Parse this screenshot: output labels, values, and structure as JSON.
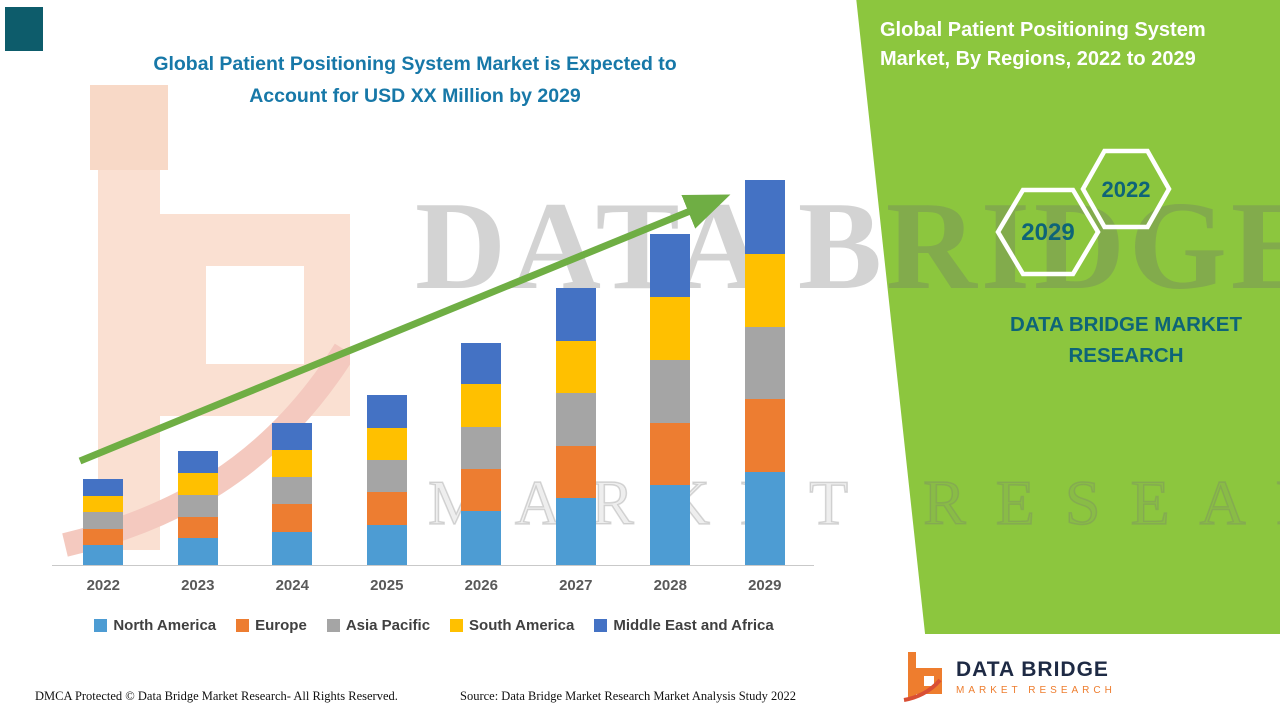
{
  "header": {
    "title_line1": "Global Patient Positioning System Market is Expected to",
    "title_line2": "Account for USD XX Million by 2029"
  },
  "side_panel": {
    "title": "Global Patient Positioning System Market, By Regions, 2022 to 2029",
    "hexagon_labels": [
      "2029",
      "2022"
    ],
    "brand_text": "DATA BRIDGE MARKET RESEARCH",
    "logo_title": "DATA BRIDGE",
    "logo_subtitle": "MARKET RESEARCH"
  },
  "watermark": {
    "line1": "DATA BRIDGE",
    "line2": "MARKET RESEARCH"
  },
  "footer": {
    "dmca": "DMCA Protected © Data Bridge Market Research- All Rights Reserved.",
    "source": "Source: Data Bridge Market Research Market Analysis Study 2022"
  },
  "colors": {
    "panel_green": "#8CC63E",
    "heading_teal": "#1778A8",
    "brand_teal": "#0E6478",
    "arrow_green": "#6FAE44",
    "logo_orange": "#EE7D2E",
    "logo_navy": "#1E2A44"
  },
  "chart_data": {
    "type": "bar",
    "stacked": true,
    "title": "Global Patient Positioning System Market is Expected to Account for USD XX Million by 2029",
    "categories": [
      "2022",
      "2023",
      "2024",
      "2025",
      "2026",
      "2027",
      "2028",
      "2029"
    ],
    "unit": "relative index (actual values masked as USD XX Million)",
    "series": [
      {
        "name": "North America",
        "color": "#4D9CD3",
        "values": [
          20,
          27,
          33,
          40,
          53,
          66,
          79,
          92
        ]
      },
      {
        "name": "Europe",
        "color": "#ED7D31",
        "values": [
          16,
          21,
          27,
          32,
          42,
          52,
          62,
          72
        ]
      },
      {
        "name": "Asia Pacific",
        "color": "#A5A5A5",
        "values": [
          16,
          21,
          27,
          32,
          42,
          52,
          62,
          72
        ]
      },
      {
        "name": "South America",
        "color": "#FFC000",
        "values": [
          16,
          22,
          27,
          32,
          42,
          52,
          62,
          72
        ]
      },
      {
        "name": "Middle East and Africa",
        "color": "#4472C4",
        "values": [
          17,
          22,
          27,
          32,
          41,
          52,
          63,
          73
        ]
      }
    ],
    "totals": [
      85,
      113,
      141,
      168,
      220,
      274,
      328,
      381
    ],
    "legend_position": "bottom",
    "gridlines": false,
    "annotations": [
      {
        "type": "trend-arrow",
        "direction": "up"
      }
    ]
  }
}
